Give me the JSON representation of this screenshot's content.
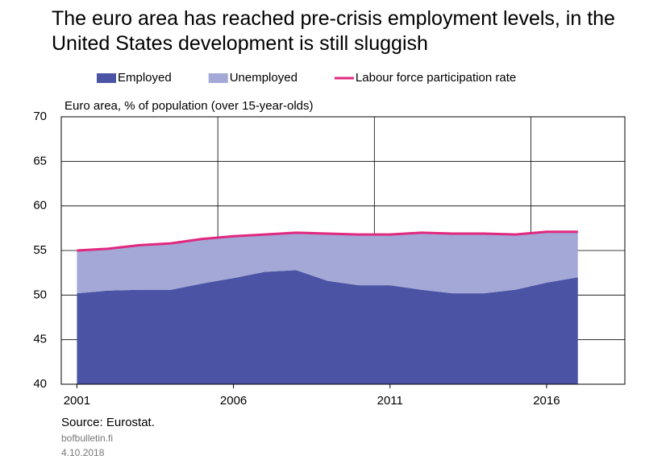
{
  "chart_data": {
    "type": "area",
    "title": "The euro area has reached pre-crisis employment levels, in the United States development is still sluggish",
    "subtitle": "Euro area, % of population (over 15-year-olds)",
    "x": [
      2001,
      2002,
      2003,
      2004,
      2005,
      2006,
      2007,
      2008,
      2009,
      2010,
      2011,
      2012,
      2013,
      2014,
      2015,
      2016,
      2017
    ],
    "series": [
      {
        "name": "Employed",
        "type": "area",
        "stacked": true,
        "color": "#4b53a4",
        "values": [
          50.2,
          50.5,
          50.6,
          50.6,
          51.3,
          51.9,
          52.6,
          52.8,
          51.6,
          51.1,
          51.1,
          50.6,
          50.2,
          50.2,
          50.6,
          51.4,
          52.0
        ]
      },
      {
        "name": "Unemployed",
        "type": "area",
        "stacked": true,
        "color": "#a3a8d6",
        "values": [
          4.8,
          4.7,
          5.0,
          5.2,
          5.0,
          4.7,
          4.2,
          4.2,
          5.3,
          5.7,
          5.7,
          6.4,
          6.7,
          6.7,
          6.2,
          5.7,
          5.1
        ]
      },
      {
        "name": "Labour force participation rate",
        "type": "line",
        "color": "#e0287f",
        "values": [
          55.0,
          55.2,
          55.6,
          55.8,
          56.3,
          56.6,
          56.8,
          57.0,
          56.9,
          56.8,
          56.8,
          57.0,
          56.9,
          56.9,
          56.8,
          57.1,
          57.1
        ]
      }
    ],
    "xlim": [
      2000.5,
      2018.5
    ],
    "xticks": [
      2001,
      2006,
      2011,
      2016
    ],
    "ylim": [
      40,
      70
    ],
    "yticks": [
      40,
      45,
      50,
      55,
      60,
      65,
      70
    ],
    "grid": true,
    "source": "Source: Eurostat.",
    "site": "bofbulletin.fi",
    "date": "4.10.2018"
  }
}
